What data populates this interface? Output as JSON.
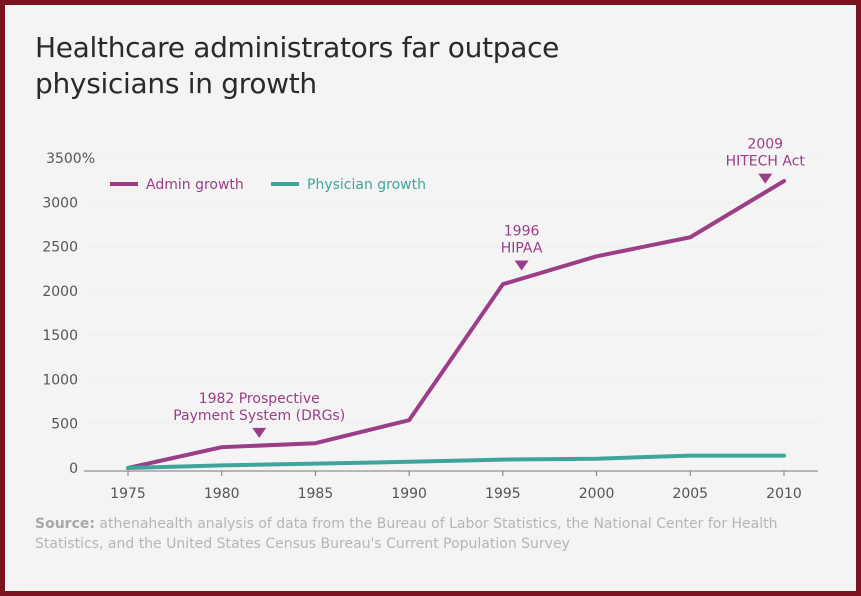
{
  "chart_data": {
    "type": "line",
    "title": "Healthcare administrators far outpace physicians in growth",
    "xlabel": "",
    "ylabel": "",
    "x": [
      1975,
      1980,
      1985,
      1990,
      1995,
      2000,
      2005,
      2010
    ],
    "series": [
      {
        "name": "Admin growth",
        "color": "#9b3d87",
        "values": [
          0,
          235,
          280,
          540,
          2075,
          2390,
          2605,
          3240
        ]
      },
      {
        "name": "Physician growth",
        "color": "#3fa59c",
        "values": [
          0,
          30,
          50,
          70,
          95,
          105,
          140,
          140
        ]
      }
    ],
    "ylim": [
      0,
      3500
    ],
    "xlim": [
      1975,
      2010
    ],
    "yticks": [
      "0",
      "500",
      "1000",
      "1500",
      "2000",
      "2500",
      "3000",
      "3500%"
    ],
    "ytick_values": [
      0,
      500,
      1000,
      1500,
      2000,
      2500,
      3000,
      3500
    ],
    "xticks": [
      "1975",
      "1980",
      "1985",
      "1990",
      "1995",
      "2000",
      "2005",
      "2010"
    ],
    "grid": true,
    "legend_position": "top-left",
    "annotations": [
      {
        "x": 1982,
        "lines": [
          "1982 Prospective",
          "Payment System (DRGs)"
        ],
        "y": 250
      },
      {
        "x": 1996,
        "lines": [
          "1996",
          "HIPAA"
        ],
        "y": 2140
      },
      {
        "x": 2009,
        "lines": [
          "2009",
          "HITECH Act"
        ],
        "y": 3120
      }
    ]
  },
  "source": {
    "label": "Source:",
    "text": "athenahealth analysis of data from the Bureau of Labor Statistics, the National Center for Health Statistics, and the United States Census Bureau's Current Population Survey"
  }
}
